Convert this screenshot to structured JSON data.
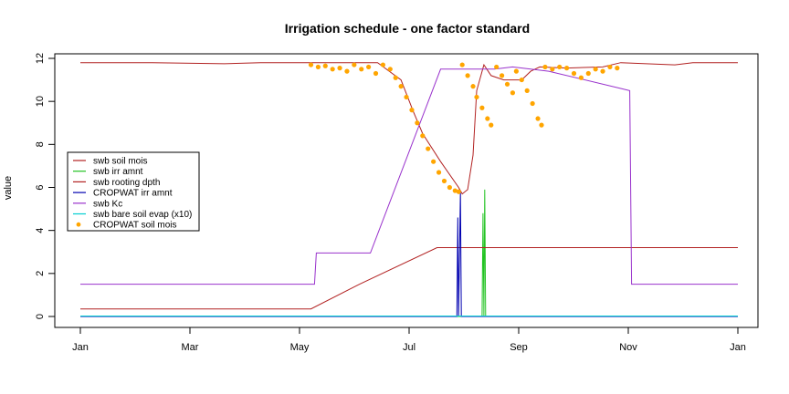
{
  "chart_data": {
    "type": "line",
    "title": "Irrigation schedule - one factor standard",
    "xlabel": "",
    "ylabel": "value",
    "x_ticks": [
      "Jan",
      "Mar",
      "May",
      "Jul",
      "Sep",
      "Nov",
      "Jan"
    ],
    "y_ticks": [
      "0",
      "2",
      "4",
      "6",
      "8",
      "10",
      "12"
    ],
    "xlim": [
      0,
      365
    ],
    "ylim": [
      0,
      12
    ],
    "legend_position": "left",
    "series": [
      {
        "name": "swb soil mois",
        "color": "#b22222",
        "points": [
          [
            0,
            11.8
          ],
          [
            40,
            11.8
          ],
          [
            80,
            11.75
          ],
          [
            100,
            11.8
          ],
          [
            120,
            11.8
          ],
          [
            140,
            11.8
          ],
          [
            165,
            11.8
          ],
          [
            178,
            11.0
          ],
          [
            185,
            9.5
          ],
          [
            190,
            8.5
          ],
          [
            200,
            7.2
          ],
          [
            210,
            6.0
          ],
          [
            212,
            5.7
          ],
          [
            215,
            5.9
          ],
          [
            218,
            7.5
          ],
          [
            220,
            10.5
          ],
          [
            224,
            11.7
          ],
          [
            228,
            11.2
          ],
          [
            235,
            11.0
          ],
          [
            245,
            11.0
          ],
          [
            250,
            11.4
          ],
          [
            255,
            11.6
          ],
          [
            270,
            11.55
          ],
          [
            290,
            11.6
          ],
          [
            300,
            11.8
          ],
          [
            330,
            11.7
          ],
          [
            340,
            11.8
          ],
          [
            365,
            11.8
          ]
        ]
      },
      {
        "name": "swb irr amnt",
        "color": "#22c322",
        "points": [
          [
            0,
            0
          ],
          [
            223,
            0
          ],
          [
            223.5,
            4.8
          ],
          [
            224,
            0
          ],
          [
            224.5,
            5.9
          ],
          [
            225,
            0
          ],
          [
            365,
            0
          ]
        ]
      },
      {
        "name": "swb rooting dpth",
        "color": "#b22222",
        "points": [
          [
            0,
            0.35
          ],
          [
            128,
            0.35
          ],
          [
            155,
            1.5
          ],
          [
            198,
            3.2
          ],
          [
            365,
            3.2
          ]
        ]
      },
      {
        "name": "CROPWAT irr amnt",
        "color": "#0000b0",
        "points": [
          [
            0,
            0
          ],
          [
            209,
            0
          ],
          [
            209.5,
            4.6
          ],
          [
            210,
            0
          ],
          [
            211,
            5.8
          ],
          [
            211.5,
            0
          ],
          [
            365,
            0
          ]
        ]
      },
      {
        "name": "swb Kc",
        "color": "#9932cc",
        "points": [
          [
            0,
            1.5
          ],
          [
            130,
            1.5
          ],
          [
            131,
            2.95
          ],
          [
            161,
            2.95
          ],
          [
            200,
            11.5
          ],
          [
            230,
            11.5
          ],
          [
            240,
            11.6
          ],
          [
            260,
            11.4
          ],
          [
            300,
            10.6
          ],
          [
            305,
            10.5
          ],
          [
            306,
            1.5
          ],
          [
            365,
            1.5
          ]
        ]
      },
      {
        "name": "swb bare soil evap (x10)",
        "color": "#00ced1",
        "points": [
          [
            0,
            0.02
          ],
          [
            365,
            0.02
          ]
        ]
      },
      {
        "name": "CROPWAT soil mois",
        "color": "#ffa500",
        "marker": "point",
        "points": [
          [
            128,
            11.7
          ],
          [
            132,
            11.6
          ],
          [
            136,
            11.65
          ],
          [
            140,
            11.5
          ],
          [
            144,
            11.55
          ],
          [
            148,
            11.4
          ],
          [
            152,
            11.7
          ],
          [
            156,
            11.5
          ],
          [
            160,
            11.6
          ],
          [
            164,
            11.3
          ],
          [
            168,
            11.7
          ],
          [
            172,
            11.5
          ],
          [
            175,
            11.1
          ],
          [
            178,
            10.7
          ],
          [
            181,
            10.2
          ],
          [
            184,
            9.6
          ],
          [
            187,
            9.0
          ],
          [
            190,
            8.4
          ],
          [
            193,
            7.8
          ],
          [
            196,
            7.2
          ],
          [
            199,
            6.7
          ],
          [
            202,
            6.3
          ],
          [
            205,
            6.0
          ],
          [
            208,
            5.85
          ],
          [
            210,
            5.8
          ],
          [
            212,
            11.7
          ],
          [
            215,
            11.2
          ],
          [
            218,
            10.7
          ],
          [
            220,
            10.2
          ],
          [
            223,
            9.7
          ],
          [
            226,
            9.2
          ],
          [
            228,
            8.9
          ],
          [
            231,
            11.6
          ],
          [
            234,
            11.2
          ],
          [
            237,
            10.8
          ],
          [
            240,
            10.4
          ],
          [
            242,
            11.4
          ],
          [
            245,
            11.0
          ],
          [
            248,
            10.5
          ],
          [
            251,
            9.9
          ],
          [
            254,
            9.2
          ],
          [
            256,
            8.9
          ],
          [
            258,
            11.6
          ],
          [
            262,
            11.5
          ],
          [
            266,
            11.6
          ],
          [
            270,
            11.55
          ],
          [
            274,
            11.3
          ],
          [
            278,
            11.1
          ],
          [
            282,
            11.3
          ],
          [
            286,
            11.5
          ],
          [
            290,
            11.4
          ],
          [
            294,
            11.6
          ],
          [
            298,
            11.55
          ]
        ]
      }
    ]
  }
}
